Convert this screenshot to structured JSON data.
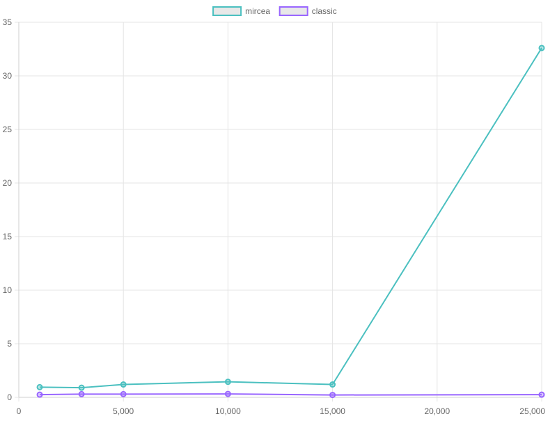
{
  "chart_data": {
    "type": "line",
    "title": "",
    "xlabel": "",
    "ylabel": "",
    "xlim": [
      0,
      25000
    ],
    "ylim": [
      0,
      35
    ],
    "x_ticks": [
      0,
      5000,
      10000,
      15000,
      20000,
      25000
    ],
    "x_tick_labels": [
      "0",
      "5,000",
      "10,000",
      "15,000",
      "20,000",
      "25,000"
    ],
    "y_ticks": [
      0,
      5,
      10,
      15,
      20,
      25,
      30,
      35
    ],
    "y_tick_labels": [
      "0",
      "5",
      "10",
      "15",
      "20",
      "25",
      "30",
      "35"
    ],
    "grid": true,
    "legend_position": "top-center",
    "series": [
      {
        "name": "mircea",
        "color": "#4bc0c0",
        "points": [
          {
            "x": 1000,
            "y": 0.95
          },
          {
            "x": 3000,
            "y": 0.9
          },
          {
            "x": 5000,
            "y": 1.2
          },
          {
            "x": 10000,
            "y": 1.45
          },
          {
            "x": 15000,
            "y": 1.2
          },
          {
            "x": 25000,
            "y": 32.6
          }
        ]
      },
      {
        "name": "classic",
        "color": "#9966ff",
        "points": [
          {
            "x": 1000,
            "y": 0.25
          },
          {
            "x": 3000,
            "y": 0.3
          },
          {
            "x": 5000,
            "y": 0.3
          },
          {
            "x": 10000,
            "y": 0.32
          },
          {
            "x": 15000,
            "y": 0.22
          },
          {
            "x": 25000,
            "y": 0.25
          }
        ]
      }
    ]
  }
}
